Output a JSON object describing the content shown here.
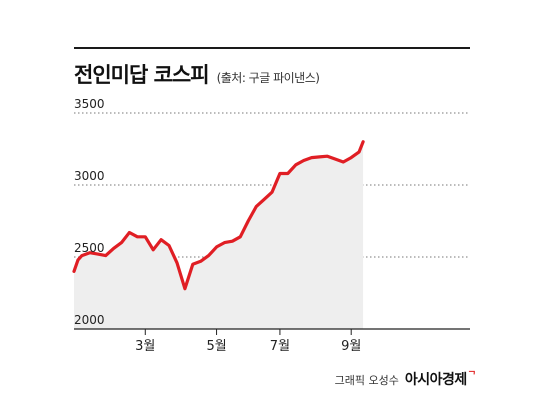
{
  "header": {
    "title": "전인미답 코스피",
    "source": "(출처: 구글 파이낸스)"
  },
  "colors": {
    "line": "#e01e24",
    "fill": "#eeeeee",
    "grid": "#777777",
    "axis": "#222222"
  },
  "chart_data": {
    "type": "area",
    "title": "전인미답 코스피",
    "xlabel": "",
    "ylabel": "",
    "ylim": [
      2000,
      3500
    ],
    "xlim": [
      1,
      51
    ],
    "y_ticks": [
      2000,
      2500,
      3000,
      3500
    ],
    "y_tick_labels": [
      "2000",
      "2500",
      "3000",
      "3500"
    ],
    "x_ticks": [
      10,
      19,
      27,
      36
    ],
    "x_tick_labels": [
      "3월",
      "5월",
      "7월",
      "9월"
    ],
    "grid": "horizontal-dotted",
    "series": [
      {
        "name": "",
        "x": [
          1,
          1.5,
          2,
          3,
          4,
          5,
          6,
          7,
          8,
          9,
          10,
          11,
          12,
          13,
          14,
          15,
          16,
          17,
          18,
          19,
          20,
          21,
          22,
          23,
          24,
          25,
          26,
          27,
          28,
          29,
          30,
          31,
          32,
          33,
          34,
          35,
          36,
          37,
          37.5
        ],
        "values": [
          2400,
          2480,
          2510,
          2530,
          2520,
          2510,
          2560,
          2600,
          2670,
          2640,
          2640,
          2550,
          2620,
          2580,
          2460,
          2280,
          2450,
          2470,
          2510,
          2570,
          2600,
          2610,
          2640,
          2750,
          2850,
          2900,
          2950,
          3080,
          3080,
          3140,
          3170,
          3190,
          3195,
          3200,
          3180,
          3160,
          3190,
          3230,
          3300
        ]
      }
    ]
  },
  "footer": {
    "credit": "그래픽 오성수",
    "brand": "아시아경제",
    "brand_mark": "ᄀ"
  }
}
